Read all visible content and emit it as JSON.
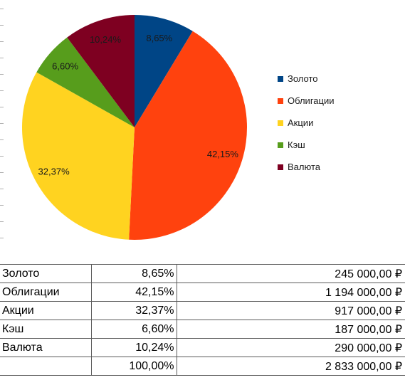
{
  "chart_data": {
    "type": "pie",
    "slices": [
      {
        "label": "Золото",
        "value": 8.65,
        "pct_label": "8,65%",
        "color": "#004586"
      },
      {
        "label": "Облигации",
        "value": 42.15,
        "pct_label": "42,15%",
        "color": "#ff420e"
      },
      {
        "label": "Акции",
        "value": 32.37,
        "pct_label": "32,37%",
        "color": "#ffd320"
      },
      {
        "label": "Кэш",
        "value": 6.6,
        "pct_label": "6,60%",
        "color": "#579d1c"
      },
      {
        "label": "Валюта",
        "value": 10.24,
        "pct_label": "10,24%",
        "color": "#7e0021"
      }
    ],
    "legend_position": "right"
  },
  "table": {
    "rows": [
      {
        "name": "Золото",
        "pct": "8,65%",
        "amount": "245 000,00 ₽"
      },
      {
        "name": "Облигации",
        "pct": "42,15%",
        "amount": "1 194 000,00 ₽"
      },
      {
        "name": "Акции",
        "pct": "32,37%",
        "amount": "917 000,00 ₽"
      },
      {
        "name": "Кэш",
        "pct": "6,60%",
        "amount": "187 000,00 ₽"
      },
      {
        "name": "Валюта",
        "pct": "10,24%",
        "amount": "290 000,00 ₽"
      },
      {
        "name": "",
        "pct": "100,00%",
        "amount": "2 833 000,00 ₽"
      }
    ]
  }
}
